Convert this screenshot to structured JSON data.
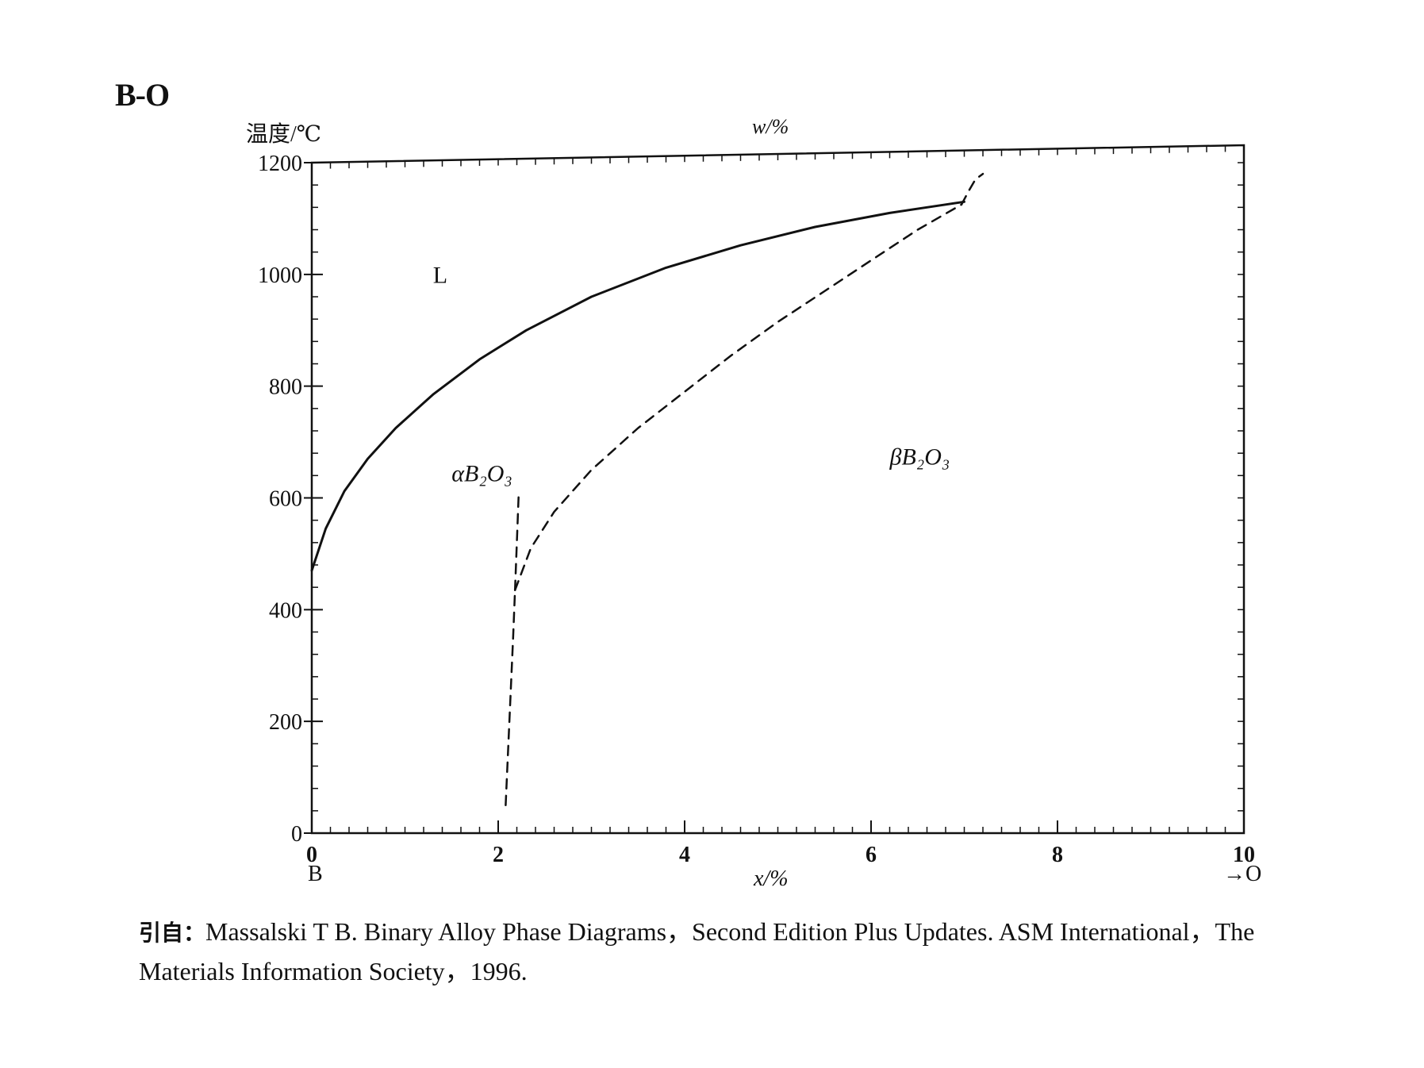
{
  "header": {
    "system_title": "B-O"
  },
  "chart_data": {
    "type": "line",
    "title": "",
    "ylabel": "温度/℃",
    "top_xlabel": "w/%",
    "xlabel": "x/%",
    "xlim": [
      0,
      10
    ],
    "ylim": [
      0,
      1200
    ],
    "x_ticks": [
      0,
      2,
      4,
      6,
      8,
      10
    ],
    "y_ticks": [
      0,
      200,
      400,
      600,
      800,
      1000,
      1200
    ],
    "left_end_label": "B",
    "right_end_label": "→O",
    "grid": false,
    "legend": "none",
    "series": [
      {
        "style": "solid",
        "x": [
          0.0,
          0.15,
          0.35,
          0.6,
          0.9,
          1.3,
          1.8,
          2.3,
          3.0,
          3.8,
          4.6,
          5.4,
          6.2,
          6.8,
          7.0
        ],
        "y": [
          470,
          545,
          612,
          670,
          725,
          785,
          848,
          900,
          960,
          1012,
          1052,
          1085,
          1110,
          1125,
          1130
        ]
      },
      {
        "style": "dashed",
        "x": [
          2.18,
          2.35,
          2.6,
          3.0,
          3.5,
          4.0,
          4.5,
          5.0,
          5.5,
          6.0,
          6.5,
          6.97
        ],
        "y": [
          435,
          510,
          575,
          650,
          725,
          790,
          855,
          915,
          970,
          1025,
          1080,
          1125
        ]
      },
      {
        "style": "dashed",
        "x": [
          6.97,
          7.05,
          7.12,
          7.2
        ],
        "y": [
          1125,
          1150,
          1170,
          1180
        ]
      },
      {
        "style": "dashed",
        "x": [
          2.08,
          2.12,
          2.16,
          2.18
        ],
        "y": [
          50,
          200,
          350,
          435
        ]
      },
      {
        "style": "dashed",
        "x": [
          2.18,
          2.2,
          2.22
        ],
        "y": [
          435,
          520,
          610
        ]
      }
    ],
    "region_labels": [
      {
        "text": "L",
        "x": 1.3,
        "y": 985
      },
      {
        "text": "αB₂O₃",
        "x": 1.5,
        "y": 630
      },
      {
        "text": "βB₂O₃",
        "x": 6.2,
        "y": 660
      }
    ]
  },
  "citation": {
    "lead": "引自：",
    "line1": "Massalski T B. Binary Alloy Phase Diagrams，Second Edition Plus Updates. ASM International，The",
    "line2": "Materials Information Society，1996."
  }
}
